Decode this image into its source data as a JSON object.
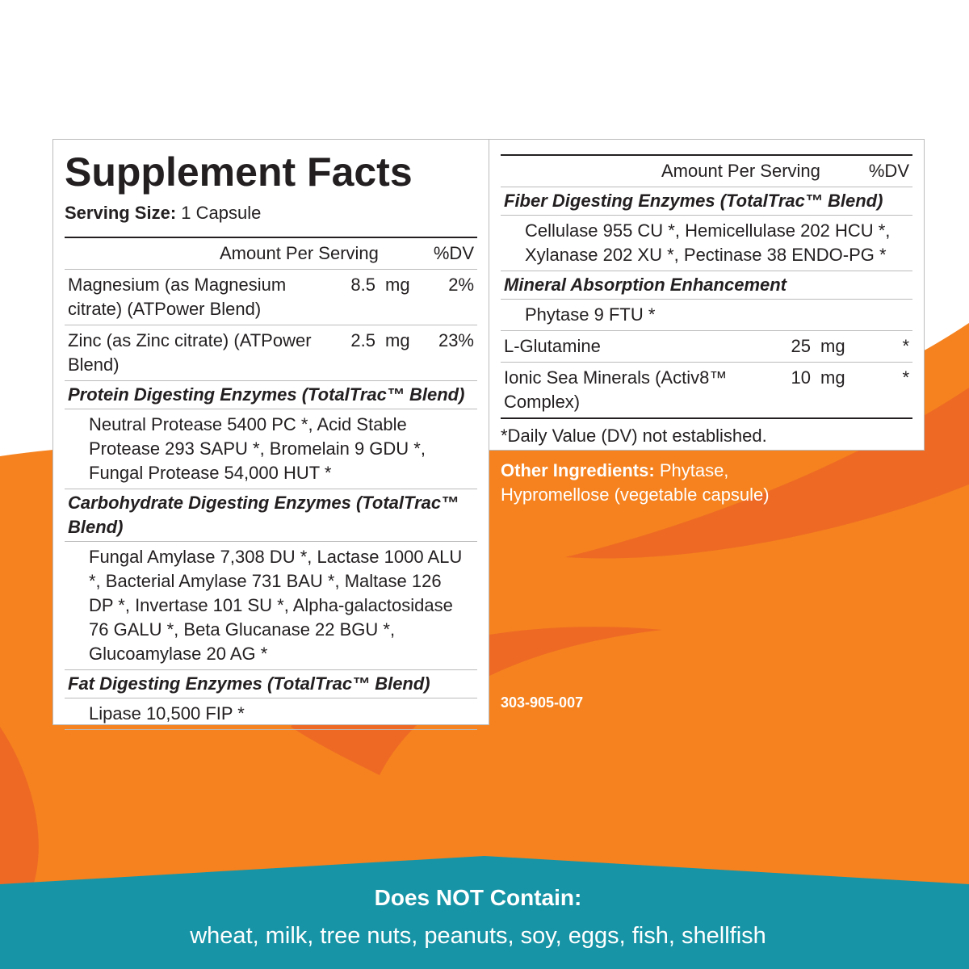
{
  "left_panel": {
    "title": "Supplement Facts",
    "serving_size": {
      "label": "Serving Size:",
      "value": "1 Capsule"
    },
    "header": {
      "amount": "Amount Per Serving",
      "dv": "%DV"
    },
    "rows": [
      {
        "name": "Magnesium (as Magnesium citrate) (ATPower Blend)",
        "amount": "8.5",
        "unit": "mg",
        "dv": "2%"
      },
      {
        "name": "Zinc (as Zinc citrate) (ATPower Blend)",
        "amount": "2.5",
        "unit": "mg",
        "dv": "23%"
      }
    ],
    "sections": [
      {
        "title": "Protein Digesting Enzymes (TotalTrac™ Blend)",
        "items": "Neutral Protease 5400 PC *, Acid Stable Protease 293 SAPU *, Bromelain 9 GDU *, Fungal Protease 54,000 HUT *"
      },
      {
        "title": "Carbohydrate Digesting Enzymes (TotalTrac™ Blend)",
        "items": "Fungal Amylase 7,308 DU *, Lactase 1000 ALU *, Bacterial Amylase 731 BAU *, Maltase 126 DP *, Invertase 101 SU *, Alpha-galactosidase 76 GALU *, Beta Glucanase 22 BGU *, Glucoamylase 20 AG *"
      },
      {
        "title": "Fat Digesting Enzymes (TotalTrac™ Blend)",
        "items": "Lipase 10,500 FIP *"
      }
    ]
  },
  "right_panel": {
    "header": {
      "amount": "Amount Per Serving",
      "dv": "%DV"
    },
    "sections": [
      {
        "title": "Fiber Digesting Enzymes (TotalTrac™ Blend)",
        "items": "Cellulase 955 CU *, Hemicellulase 202 HCU *, Xylanase 202 XU *, Pectinase 38 ENDO-PG *"
      },
      {
        "title": "Mineral Absorption Enhancement",
        "items": "Phytase 9 FTU *"
      }
    ],
    "rows": [
      {
        "name": "L-Glutamine",
        "amount": "25",
        "unit": "mg",
        "dv": "*"
      },
      {
        "name": "Ionic Sea Minerals (Activ8™ Complex)",
        "amount": "10",
        "unit": "mg",
        "dv": "*"
      }
    ],
    "footnote": "*Daily Value (DV) not established."
  },
  "other_ingredients": {
    "label": "Other Ingredients:",
    "text": "Phytase, Hypromellose (vegetable capsule)"
  },
  "code": "303-905-007",
  "banner": {
    "title": "Does NOT Contain:",
    "text": "wheat, milk, tree nuts, peanuts, soy, eggs, fish, shellfish"
  }
}
